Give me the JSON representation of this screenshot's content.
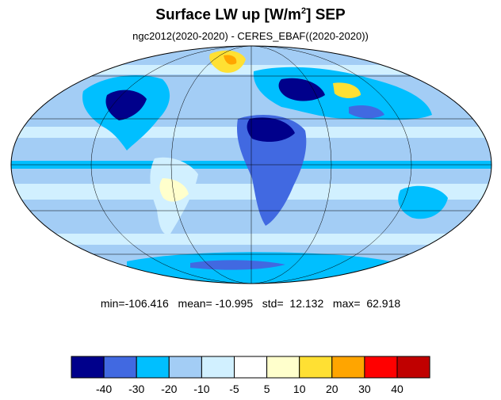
{
  "title_main": "Surface LW up [W/m",
  "title_sup": "2",
  "title_after": "]  SEP",
  "subtitle": "ngc2012(2020-2020) - CERES_EBAF((2020-2020))",
  "stats": {
    "min_label": "min=",
    "min": "-106.416",
    "mean_label": "mean=",
    "mean": "-10.995",
    "std_label": "std=",
    "std": "12.132",
    "max_label": "max=",
    "max": "62.918"
  },
  "colorbar": {
    "colors": [
      "#00008b",
      "#4169e1",
      "#00bfff",
      "#a3cdf5",
      "#d1f0ff",
      "#ffffff",
      "#ffffcc",
      "#ffe033",
      "#ffa500",
      "#ff0000",
      "#c00000"
    ],
    "labels": [
      "-40",
      "-30",
      "-20",
      "-10",
      "-5",
      "5",
      "10",
      "20",
      "30",
      "40"
    ]
  }
}
